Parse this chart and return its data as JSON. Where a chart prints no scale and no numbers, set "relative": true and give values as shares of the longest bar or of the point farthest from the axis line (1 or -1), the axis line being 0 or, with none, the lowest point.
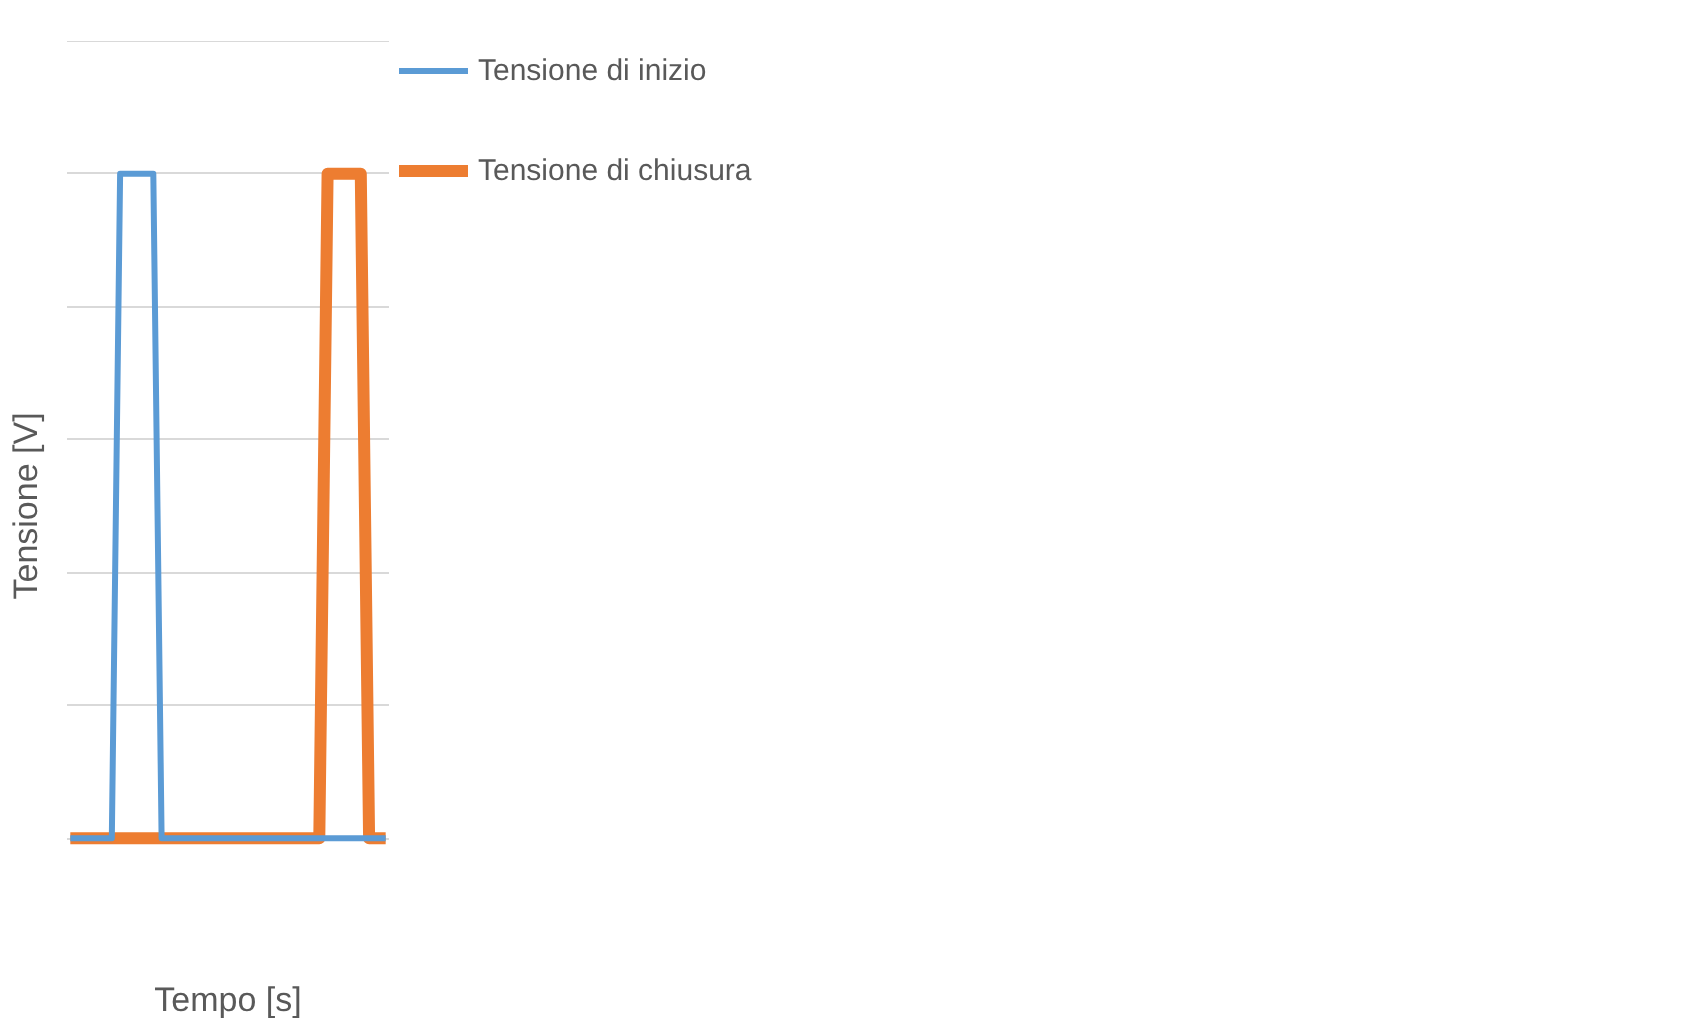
{
  "chart_data": {
    "type": "line",
    "xlabel": "Tempo [s]",
    "ylabel": "Tensione [V]",
    "relative": true,
    "grid": "y",
    "legend": "right",
    "line_style": "solid",
    "marker": "none",
    "categories": [
      null,
      null,
      null,
      null,
      null,
      null,
      null,
      null,
      null,
      null,
      null,
      null,
      null,
      null,
      null,
      null,
      null,
      null,
      null,
      null,
      null,
      null,
      null,
      null,
      null,
      null,
      null,
      null,
      null,
      null,
      null,
      null,
      null,
      null,
      null,
      null,
      null,
      null,
      null
    ],
    "series": [
      {
        "name": "Tensione di inizio",
        "color": "#5b9bd5",
        "values": [
          0,
          0,
          0,
          0,
          0,
          0,
          1,
          1,
          1,
          1,
          1,
          0,
          0,
          0,
          0,
          0,
          0,
          0,
          0,
          0,
          0,
          0,
          0,
          0,
          0,
          0,
          0,
          0,
          0,
          0,
          0,
          0,
          0,
          0,
          0,
          0,
          0,
          0,
          0
        ]
      },
      {
        "name": "Tensione di chiusura",
        "color": "#ed7d31",
        "values": [
          0,
          0,
          0,
          0,
          0,
          0,
          0,
          0,
          0,
          0,
          0,
          0,
          0,
          0,
          0,
          0,
          0,
          0,
          0,
          0,
          0,
          0,
          0,
          0,
          0,
          0,
          0,
          0,
          0,
          0,
          0,
          1,
          1,
          1,
          1,
          1,
          0,
          0,
          0
        ]
      }
    ]
  }
}
